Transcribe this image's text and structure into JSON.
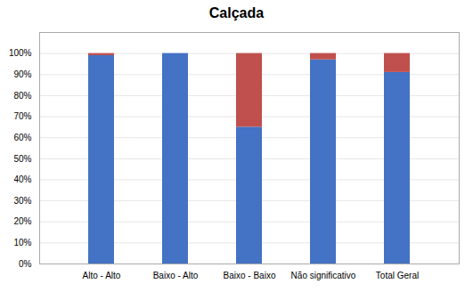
{
  "chart_data": {
    "type": "bar",
    "title": "Calçada",
    "categories": [
      "Alto - Alto",
      "Baixo - Alto",
      "Baixo - Baixo",
      "Não significativo",
      "Total Geral"
    ],
    "series": [
      {
        "color": "#4472C4",
        "values": [
          99.0,
          100.0,
          65.0,
          97.0,
          91.0
        ]
      },
      {
        "color": "#C0504D",
        "values": [
          1.0,
          0.0,
          35.0,
          3.0,
          9.0
        ]
      }
    ],
    "stacked": true,
    "ylim": [
      0,
      110
    ],
    "yticks": [
      {
        "value": 0,
        "label": "0%"
      },
      {
        "value": 10,
        "label": "10%"
      },
      {
        "value": 20,
        "label": "20%"
      },
      {
        "value": 30,
        "label": "30%"
      },
      {
        "value": 40,
        "label": "40%"
      },
      {
        "value": 50,
        "label": "50%"
      },
      {
        "value": 60,
        "label": "60%"
      },
      {
        "value": 70,
        "label": "70%"
      },
      {
        "value": 80,
        "label": "80%"
      },
      {
        "value": 90,
        "label": "90%"
      },
      {
        "value": 100,
        "label": "100%"
      }
    ],
    "grid": true
  }
}
